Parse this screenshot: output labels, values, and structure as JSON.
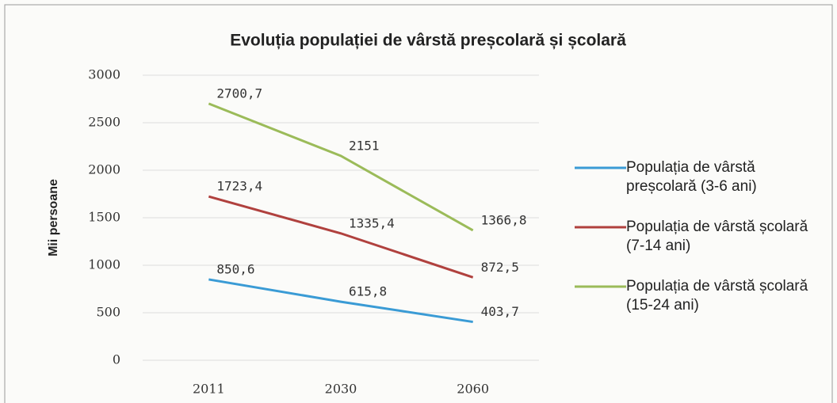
{
  "chart_data": {
    "type": "line",
    "title": "Evoluția populației de vârstă preșcolară și școlară",
    "y_label": "Mii persoane",
    "categories": [
      "2011",
      "2030",
      "2060"
    ],
    "series": [
      {
        "name": "Populația de vârstă preșcolară (3-6 ani)",
        "color": "#3a9bd5",
        "values": [
          850.6,
          615.8,
          403.7
        ],
        "value_labels": [
          "850,6",
          "615,8",
          "403,7"
        ]
      },
      {
        "name": "Populația de vârstă școlară (7-14 ani)",
        "color": "#b0413e",
        "values": [
          1723.4,
          1335.4,
          872.5
        ],
        "value_labels": [
          "1723,4",
          "1335,4",
          "872,5"
        ]
      },
      {
        "name": "Populația de vârstă școlară (15-24 ani)",
        "color": "#9bbb59",
        "values": [
          2700.7,
          2151,
          1366.8
        ],
        "value_labels": [
          "2700,7",
          "2151",
          "1366,8"
        ]
      }
    ],
    "ylim": [
      0,
      3000
    ],
    "yticks": [
      0,
      500,
      1000,
      1500,
      2000,
      2500,
      3000
    ],
    "grid": true,
    "legend": "right"
  }
}
